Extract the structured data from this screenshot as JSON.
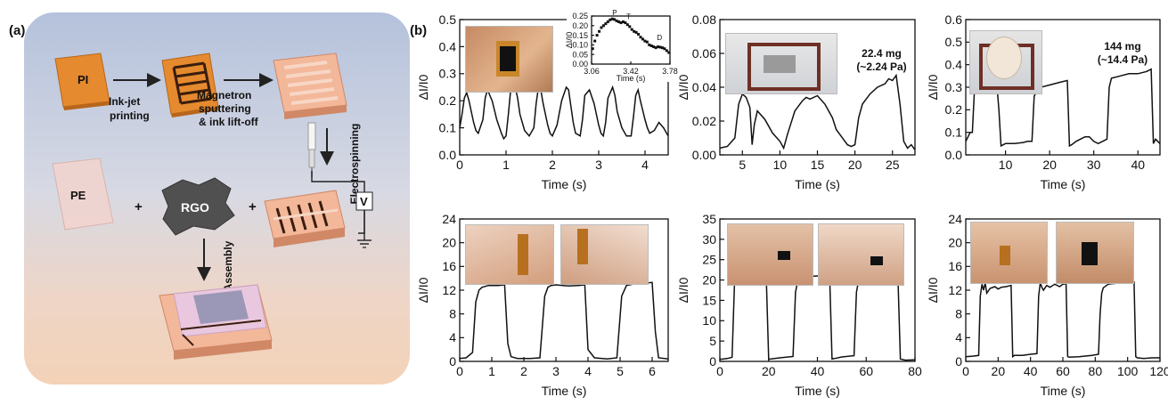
{
  "figure": {
    "panel_a_label": "(a)",
    "panel_b_label": "(b)",
    "schematic": {
      "pi_label": "PI",
      "step1": "Ink-jet\nprinting",
      "step2": "Magnetron\nsputtering\n& ink lift-off",
      "step3": "Electrospinning",
      "pe_label": "PE",
      "rgo_label": "RGO",
      "plus": "+",
      "assembly": "Assembly",
      "voltmeter": "V"
    },
    "photo_annotations": [
      {
        "text": "22.4 mg\n(~2.24 Pa)"
      },
      {
        "text": "144 mg\n(~14.4 Pa)"
      }
    ],
    "colors": {
      "trace": "#111111",
      "pi_orange": "#e58a2e",
      "rgo_gray": "#505050"
    }
  },
  "chart_data": [
    {
      "type": "line",
      "xlabel": "Time (s)",
      "ylabel": "ΔI/I0",
      "xlim": [
        0,
        4.5
      ],
      "ylim": [
        0,
        0.5
      ],
      "xticks": [
        0,
        1,
        2,
        3,
        4
      ],
      "yticks": [
        0.0,
        0.1,
        0.2,
        0.3,
        0.4,
        0.5
      ],
      "ydecimals": 1,
      "series": [
        {
          "x": [
            0,
            0.05,
            0.1,
            0.15,
            0.2,
            0.25,
            0.3,
            0.35,
            0.4,
            0.5,
            0.55,
            0.6,
            0.7,
            0.8,
            0.9,
            0.95,
            1.0,
            1.05,
            1.1,
            1.2,
            1.25,
            1.3,
            1.4,
            1.5,
            1.6,
            1.65,
            1.7,
            1.75,
            1.8,
            1.9,
            1.95,
            2.0,
            2.1,
            2.2,
            2.3,
            2.35,
            2.4,
            2.45,
            2.5,
            2.6,
            2.65,
            2.7,
            2.8,
            2.9,
            3.0,
            3.05,
            3.1,
            3.15,
            3.2,
            3.3,
            3.35,
            3.4,
            3.5,
            3.6,
            3.7,
            3.75,
            3.8,
            3.85,
            3.9,
            4.0,
            4.05,
            4.1,
            4.2,
            4.3,
            4.4,
            4.5
          ],
          "y": [
            0.1,
            0.15,
            0.21,
            0.23,
            0.2,
            0.16,
            0.12,
            0.09,
            0.08,
            0.13,
            0.21,
            0.24,
            0.2,
            0.13,
            0.08,
            0.06,
            0.07,
            0.15,
            0.24,
            0.25,
            0.21,
            0.15,
            0.09,
            0.07,
            0.1,
            0.19,
            0.25,
            0.24,
            0.19,
            0.11,
            0.08,
            0.07,
            0.11,
            0.2,
            0.25,
            0.24,
            0.18,
            0.12,
            0.08,
            0.07,
            0.13,
            0.22,
            0.24,
            0.19,
            0.11,
            0.08,
            0.07,
            0.12,
            0.21,
            0.25,
            0.22,
            0.16,
            0.1,
            0.07,
            0.07,
            0.14,
            0.22,
            0.24,
            0.2,
            0.13,
            0.1,
            0.08,
            0.09,
            0.12,
            0.1,
            0.07
          ]
        }
      ]
    },
    {
      "type": "scatter",
      "xlabel": "Time (s)",
      "ylabel": "ΔI/I0",
      "xlim": [
        3.06,
        3.78
      ],
      "ylim": [
        0,
        0.25
      ],
      "xticks": [
        3.06,
        3.42,
        3.78
      ],
      "yticks": [
        0.0,
        0.05,
        0.1,
        0.15,
        0.2,
        0.25
      ],
      "ydecimals": 2,
      "annotations": [
        {
          "text": "P",
          "x": 3.25,
          "y": 0.245
        },
        {
          "text": "T",
          "x": 3.38,
          "y": 0.225
        },
        {
          "text": "D",
          "x": 3.66,
          "y": 0.115
        }
      ],
      "series": [
        {
          "x": [
            3.07,
            3.09,
            3.11,
            3.13,
            3.15,
            3.17,
            3.19,
            3.21,
            3.23,
            3.25,
            3.27,
            3.29,
            3.31,
            3.33,
            3.35,
            3.37,
            3.39,
            3.41,
            3.43,
            3.45,
            3.47,
            3.49,
            3.51,
            3.53,
            3.55,
            3.57,
            3.59,
            3.61,
            3.63,
            3.65,
            3.67,
            3.69,
            3.71,
            3.73,
            3.75,
            3.77
          ],
          "y": [
            0.08,
            0.12,
            0.15,
            0.17,
            0.19,
            0.2,
            0.21,
            0.22,
            0.23,
            0.235,
            0.232,
            0.225,
            0.22,
            0.215,
            0.22,
            0.215,
            0.205,
            0.195,
            0.18,
            0.17,
            0.165,
            0.155,
            0.14,
            0.13,
            0.12,
            0.115,
            0.1,
            0.095,
            0.09,
            0.085,
            0.09,
            0.088,
            0.085,
            0.08,
            0.07,
            0.06
          ]
        }
      ]
    },
    {
      "type": "line",
      "xlabel": "Time (s)",
      "ylabel": "ΔI/I0",
      "xlim": [
        2,
        28
      ],
      "ylim": [
        0,
        0.08
      ],
      "xticks": [
        5,
        10,
        15,
        20,
        25
      ],
      "yticks": [
        0.0,
        0.02,
        0.04,
        0.06,
        0.08
      ],
      "ydecimals": 2,
      "series": [
        {
          "x": [
            2,
            3,
            4,
            4.5,
            5,
            5.5,
            6,
            6.3,
            6.6,
            7,
            8,
            9,
            10,
            10.5,
            11,
            12,
            13,
            13.5,
            14,
            15,
            16,
            16.5,
            17,
            17.5,
            18,
            18.5,
            19,
            19.5,
            20,
            20.5,
            21,
            22,
            23,
            24,
            24.5,
            25,
            25.5,
            26,
            26.5,
            27,
            27.5,
            28
          ],
          "y": [
            0.004,
            0.005,
            0.01,
            0.03,
            0.036,
            0.034,
            0.028,
            0.006,
            0.018,
            0.026,
            0.021,
            0.013,
            0.008,
            0.004,
            0.012,
            0.026,
            0.032,
            0.034,
            0.033,
            0.035,
            0.03,
            0.026,
            0.022,
            0.015,
            0.012,
            0.009,
            0.006,
            0.005,
            0.006,
            0.022,
            0.03,
            0.036,
            0.04,
            0.042,
            0.045,
            0.044,
            0.047,
            0.03,
            0.008,
            0.004,
            0.006,
            0.003
          ]
        }
      ]
    },
    {
      "type": "line",
      "xlabel": "Time (s)",
      "ylabel": "ΔI/I0",
      "xlim": [
        1,
        45
      ],
      "ylim": [
        0,
        0.6
      ],
      "xticks": [
        10,
        20,
        30,
        40
      ],
      "yticks": [
        0.0,
        0.1,
        0.2,
        0.3,
        0.4,
        0.5,
        0.6
      ],
      "ydecimals": 1,
      "series": [
        {
          "x": [
            1,
            2,
            2.5,
            3,
            3.5,
            4,
            5,
            6,
            7,
            8,
            8.5,
            9,
            10,
            12,
            14,
            15,
            16,
            16.5,
            17,
            18,
            20,
            22,
            24,
            24.5,
            25,
            26,
            28,
            29,
            30,
            31,
            32,
            33,
            33.5,
            34,
            36,
            38,
            40,
            42,
            43,
            43.5,
            44,
            45
          ],
          "y": [
            0.06,
            0.1,
            0.1,
            0.3,
            0.31,
            0.32,
            0.31,
            0.32,
            0.31,
            0.32,
            0.2,
            0.04,
            0.05,
            0.05,
            0.055,
            0.06,
            0.06,
            0.26,
            0.28,
            0.3,
            0.31,
            0.32,
            0.33,
            0.04,
            0.045,
            0.06,
            0.08,
            0.08,
            0.06,
            0.05,
            0.06,
            0.07,
            0.3,
            0.34,
            0.35,
            0.36,
            0.36,
            0.37,
            0.38,
            0.05,
            0.07,
            0.05
          ]
        }
      ]
    },
    {
      "type": "line",
      "xlabel": "Time (s)",
      "ylabel": "ΔI/I0",
      "xlim": [
        0,
        6.5
      ],
      "ylim": [
        0,
        24
      ],
      "xticks": [
        0,
        1,
        2,
        3,
        4,
        5,
        6
      ],
      "yticks": [
        0,
        4,
        8,
        12,
        16,
        20,
        24
      ],
      "ydecimals": 0,
      "series": [
        {
          "x": [
            0,
            0.2,
            0.4,
            0.5,
            0.6,
            0.7,
            0.9,
            1.2,
            1.4,
            1.5,
            1.6,
            1.8,
            2.2,
            2.5,
            2.65,
            2.75,
            2.85,
            3.0,
            3.4,
            3.7,
            3.9,
            4.0,
            4.2,
            4.6,
            4.9,
            5.05,
            5.2,
            5.4,
            5.8,
            6.0,
            6.1,
            6.2,
            6.5
          ],
          "y": [
            0.5,
            0.6,
            1.5,
            10,
            12,
            12.5,
            12.8,
            12.8,
            12.9,
            3,
            0.8,
            0.5,
            0.5,
            0.6,
            11,
            12.5,
            12.8,
            12.9,
            12.7,
            12.8,
            12.9,
            2,
            0.6,
            0.4,
            0.6,
            11,
            12.8,
            13,
            13.2,
            13.3,
            5,
            0.6,
            0.4
          ]
        }
      ]
    },
    {
      "type": "line",
      "xlabel": "Time (s)",
      "ylabel": "ΔI/I0",
      "xlim": [
        0,
        80
      ],
      "ylim": [
        0,
        35
      ],
      "xticks": [
        0,
        20,
        40,
        60,
        80
      ],
      "yticks": [
        0,
        5,
        10,
        15,
        20,
        25,
        30,
        35
      ],
      "ydecimals": 0,
      "series": [
        {
          "x": [
            0,
            3,
            5,
            6,
            7,
            10,
            15,
            19,
            20,
            21,
            25,
            30,
            31,
            32,
            33,
            35,
            40,
            45,
            46,
            47,
            50,
            55,
            56,
            57,
            58,
            60,
            65,
            70,
            73,
            74,
            76,
            80
          ],
          "y": [
            0.5,
            0.7,
            1,
            19,
            20.5,
            21,
            21.2,
            21.3,
            0.5,
            0.6,
            0.9,
            1.2,
            17,
            20,
            20.5,
            20.8,
            21,
            21.2,
            0.6,
            0.7,
            1.1,
            1.4,
            17,
            20.2,
            20.6,
            20.8,
            21,
            21,
            21.2,
            0.6,
            0.3,
            0.4
          ]
        }
      ]
    },
    {
      "type": "line",
      "xlabel": "Time (s)",
      "ylabel": "ΔI/I0",
      "xlim": [
        0,
        120
      ],
      "ylim": [
        0,
        24
      ],
      "xticks": [
        0,
        20,
        40,
        60,
        80,
        100,
        120
      ],
      "yticks": [
        0,
        4,
        8,
        12,
        16,
        20,
        24
      ],
      "ydecimals": 0,
      "series": [
        {
          "x": [
            0,
            5,
            8,
            9,
            10,
            11,
            12,
            13,
            15,
            18,
            20,
            22,
            25,
            28,
            29,
            30,
            35,
            40,
            44,
            45,
            46,
            47,
            48,
            50,
            52,
            55,
            58,
            60,
            62,
            63,
            64,
            70,
            78,
            82,
            83,
            84,
            85,
            88,
            90,
            95,
            100,
            104,
            105,
            106,
            110,
            115,
            120
          ],
          "y": [
            0.8,
            0.9,
            1,
            11,
            13,
            12,
            13.2,
            11.5,
            12.3,
            12.6,
            12.2,
            12.5,
            12.6,
            12.8,
            0.8,
            1,
            1,
            1.2,
            1.3,
            11,
            13.2,
            12.5,
            12,
            12.8,
            12.5,
            13,
            12.6,
            13,
            13.1,
            0.8,
            0.7,
            0.8,
            1,
            1.2,
            8,
            11.5,
            12.4,
            13,
            13.1,
            13.2,
            13.3,
            13.4,
            0.8,
            0.6,
            0.5,
            0.6,
            0.6
          ]
        }
      ]
    }
  ]
}
